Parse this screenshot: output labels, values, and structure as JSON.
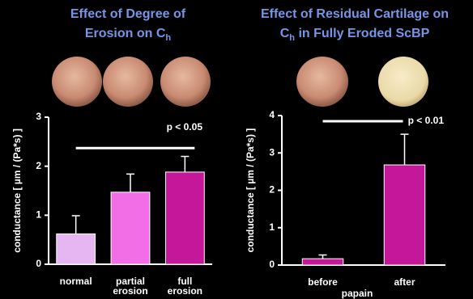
{
  "chart_data": [
    {
      "type": "bar",
      "title": [
        "Effect of Degree of",
        "Erosion on C"
      ],
      "title_subscript": "h",
      "ylabel": "conductance [ µm / (Pa*s) ]",
      "categories": [
        [
          "normal"
        ],
        [
          "partial",
          "erosion"
        ],
        [
          "full",
          "erosion"
        ]
      ],
      "values": [
        0.62,
        1.47,
        1.88
      ],
      "errors": [
        0.37,
        0.37,
        0.32
      ],
      "colors": [
        "#e6b6f2",
        "#f26ee6",
        "#c4179a"
      ],
      "ylim": [
        0,
        3
      ],
      "yticks": [
        0,
        1,
        2,
        3
      ],
      "significance": {
        "label": "p < 0.05",
        "y": 2.37
      }
    },
    {
      "type": "bar",
      "title": [
        "Effect of Residual Cartilage on",
        "C"
      ],
      "title_subscript": "h",
      "title_suffix": " in Fully Eroded ScBP",
      "ylabel": "conductance [ µm / (Pa*s) ]",
      "xlabel": "papain",
      "categories": [
        [
          "before"
        ],
        [
          "after"
        ]
      ],
      "values": [
        0.17,
        2.68
      ],
      "errors": [
        0.1,
        0.82
      ],
      "colors": [
        "#c4179a",
        "#c4179a"
      ],
      "ylim": [
        0,
        4
      ],
      "yticks": [
        0,
        1,
        2,
        3,
        4
      ],
      "significance": {
        "label": "p < 0.01",
        "y": 3.85
      }
    }
  ]
}
